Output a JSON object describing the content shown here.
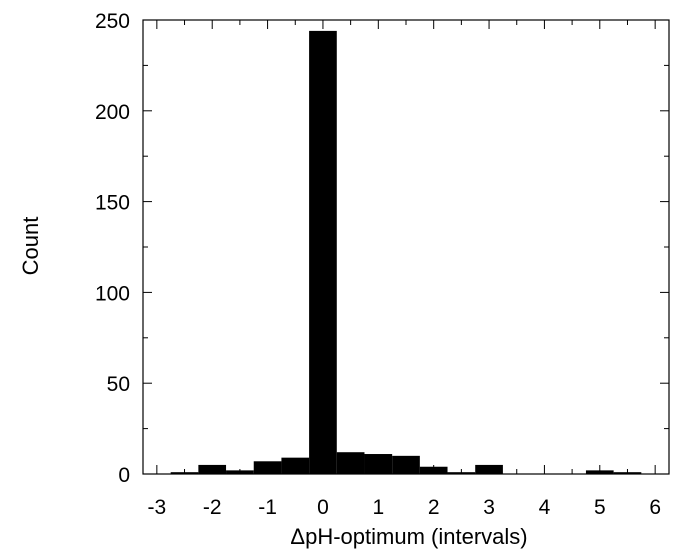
{
  "chart_data": {
    "type": "bar",
    "title": "",
    "xlabel": "ΔpH-optimum (intervals)",
    "ylabel": "Count",
    "xlim": [
      -3.25,
      6.25
    ],
    "ylim": [
      0,
      250
    ],
    "grid": false,
    "bin_width": 0.5,
    "x_ticks": [
      -3,
      -2,
      -1,
      0,
      1,
      2,
      3,
      4,
      5,
      6
    ],
    "y_ticks": [
      0,
      50,
      100,
      150,
      200,
      250
    ],
    "x": [
      -3.0,
      -2.5,
      -2.0,
      -1.5,
      -1.0,
      -0.5,
      0.0,
      0.5,
      1.0,
      1.5,
      2.0,
      2.5,
      3.0,
      3.5,
      4.0,
      4.5,
      5.0,
      5.5,
      6.0
    ],
    "values": [
      0,
      1,
      5,
      2,
      7,
      9,
      244,
      12,
      11,
      10,
      4,
      1,
      5,
      0,
      0,
      0,
      2,
      1,
      0
    ],
    "color": "#000000"
  }
}
